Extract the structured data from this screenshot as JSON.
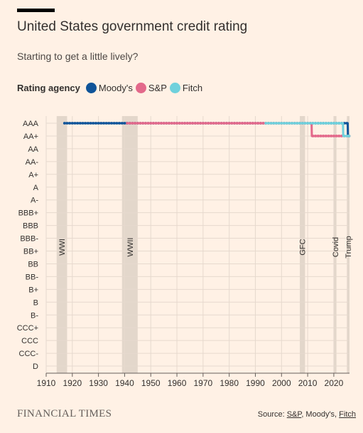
{
  "header": {
    "title": "United States government credit rating",
    "subtitle": "Starting to get a little lively?"
  },
  "legend": {
    "title": "Rating agency",
    "items": [
      {
        "label": "Moody's",
        "color": "#0f5499"
      },
      {
        "label": "S&P",
        "color": "#e3698b"
      },
      {
        "label": "Fitch",
        "color": "#6fd1dc"
      }
    ]
  },
  "footer": {
    "brand": "FINANCIAL TIMES",
    "source_prefix": "Source: ",
    "source_sp": "S&P",
    "source_mid": ", Moody's, ",
    "source_fitch": "Fitch"
  },
  "chart_data": {
    "type": "line",
    "xlabel": "",
    "ylabel": "",
    "xlim": [
      1910,
      2026
    ],
    "x_ticks": [
      1910,
      1920,
      1930,
      1940,
      1950,
      1960,
      1970,
      1980,
      1990,
      2000,
      2010,
      2020
    ],
    "y_categories": [
      "AAA",
      "AA+",
      "AA",
      "AA-",
      "A+",
      "A",
      "A-",
      "BBB+",
      "BBB",
      "BBB-",
      "BB+",
      "BB",
      "BB-",
      "B+",
      "B",
      "B-",
      "CCC+",
      "CCC",
      "CCC-",
      "D"
    ],
    "grid": true,
    "legend_position": "top-left",
    "shaded_periods": [
      {
        "label": "WWI",
        "start": 1914,
        "end": 1918
      },
      {
        "label": "WWII",
        "start": 1939,
        "end": 1945
      },
      {
        "label": "GFC",
        "start": 2007,
        "end": 2009
      },
      {
        "label": "Covid",
        "start": 2020,
        "end": 2021
      },
      {
        "label": "Trump",
        "start": 2025,
        "end": 2026
      }
    ],
    "series": [
      {
        "name": "Moody's",
        "color": "#0f5499",
        "points": [
          [
            1917,
            "AAA"
          ],
          [
            2025.3,
            "AAA"
          ],
          [
            2025.4,
            "AA+"
          ],
          [
            2025.8,
            "AA+"
          ]
        ]
      },
      {
        "name": "S&P",
        "color": "#e3698b",
        "points": [
          [
            1941,
            "AAA"
          ],
          [
            2011.5,
            "AAA"
          ],
          [
            2011.6,
            "AA+"
          ],
          [
            2025.8,
            "AA+"
          ]
        ]
      },
      {
        "name": "Fitch",
        "color": "#6fd1dc",
        "points": [
          [
            1994,
            "AAA"
          ],
          [
            2023.5,
            "AAA"
          ],
          [
            2023.6,
            "AA+"
          ],
          [
            2025.8,
            "AA+"
          ]
        ]
      }
    ]
  }
}
